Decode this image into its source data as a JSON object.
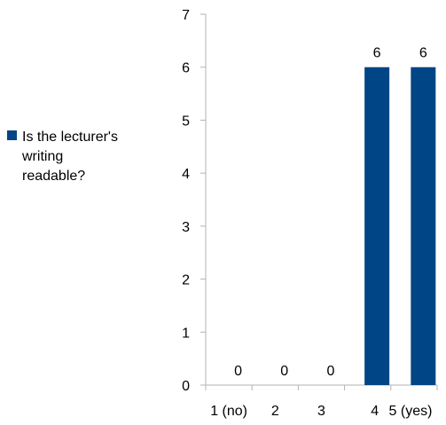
{
  "chart_data": {
    "type": "bar",
    "categories": [
      "1 (no)",
      "2",
      "3",
      "4",
      "5 (yes)"
    ],
    "series": [
      {
        "name": "Is the lecturer's writing readable?",
        "values": [
          0,
          0,
          0,
          6,
          6
        ],
        "color": "#004586"
      }
    ],
    "data_labels": [
      "0",
      "0",
      "0",
      "6",
      "6"
    ],
    "yticks": [
      "0",
      "1",
      "2",
      "3",
      "4",
      "5",
      "6",
      "7"
    ],
    "ylim": [
      0,
      7
    ],
    "title": "",
    "xlabel": "",
    "ylabel": "",
    "grid": false,
    "legend_position": "left"
  }
}
